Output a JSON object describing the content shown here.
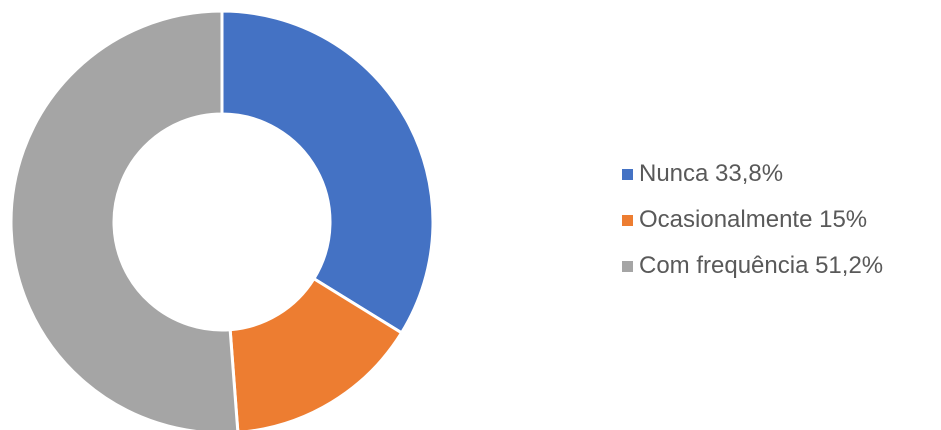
{
  "chart_data": {
    "type": "pie",
    "style": "donut",
    "categories": [
      "Nunca",
      "Ocasionalmente",
      "Com frequência"
    ],
    "values": [
      33.8,
      15,
      51.2
    ],
    "unit": "%",
    "colors": [
      "#4472C4",
      "#ED7D31",
      "#A5A5A5"
    ],
    "legend_labels": [
      "Nunca 33,8%",
      "Ocasionalmente 15%",
      "Com frequência 51,2%"
    ],
    "legend_position": "right",
    "title": ""
  }
}
